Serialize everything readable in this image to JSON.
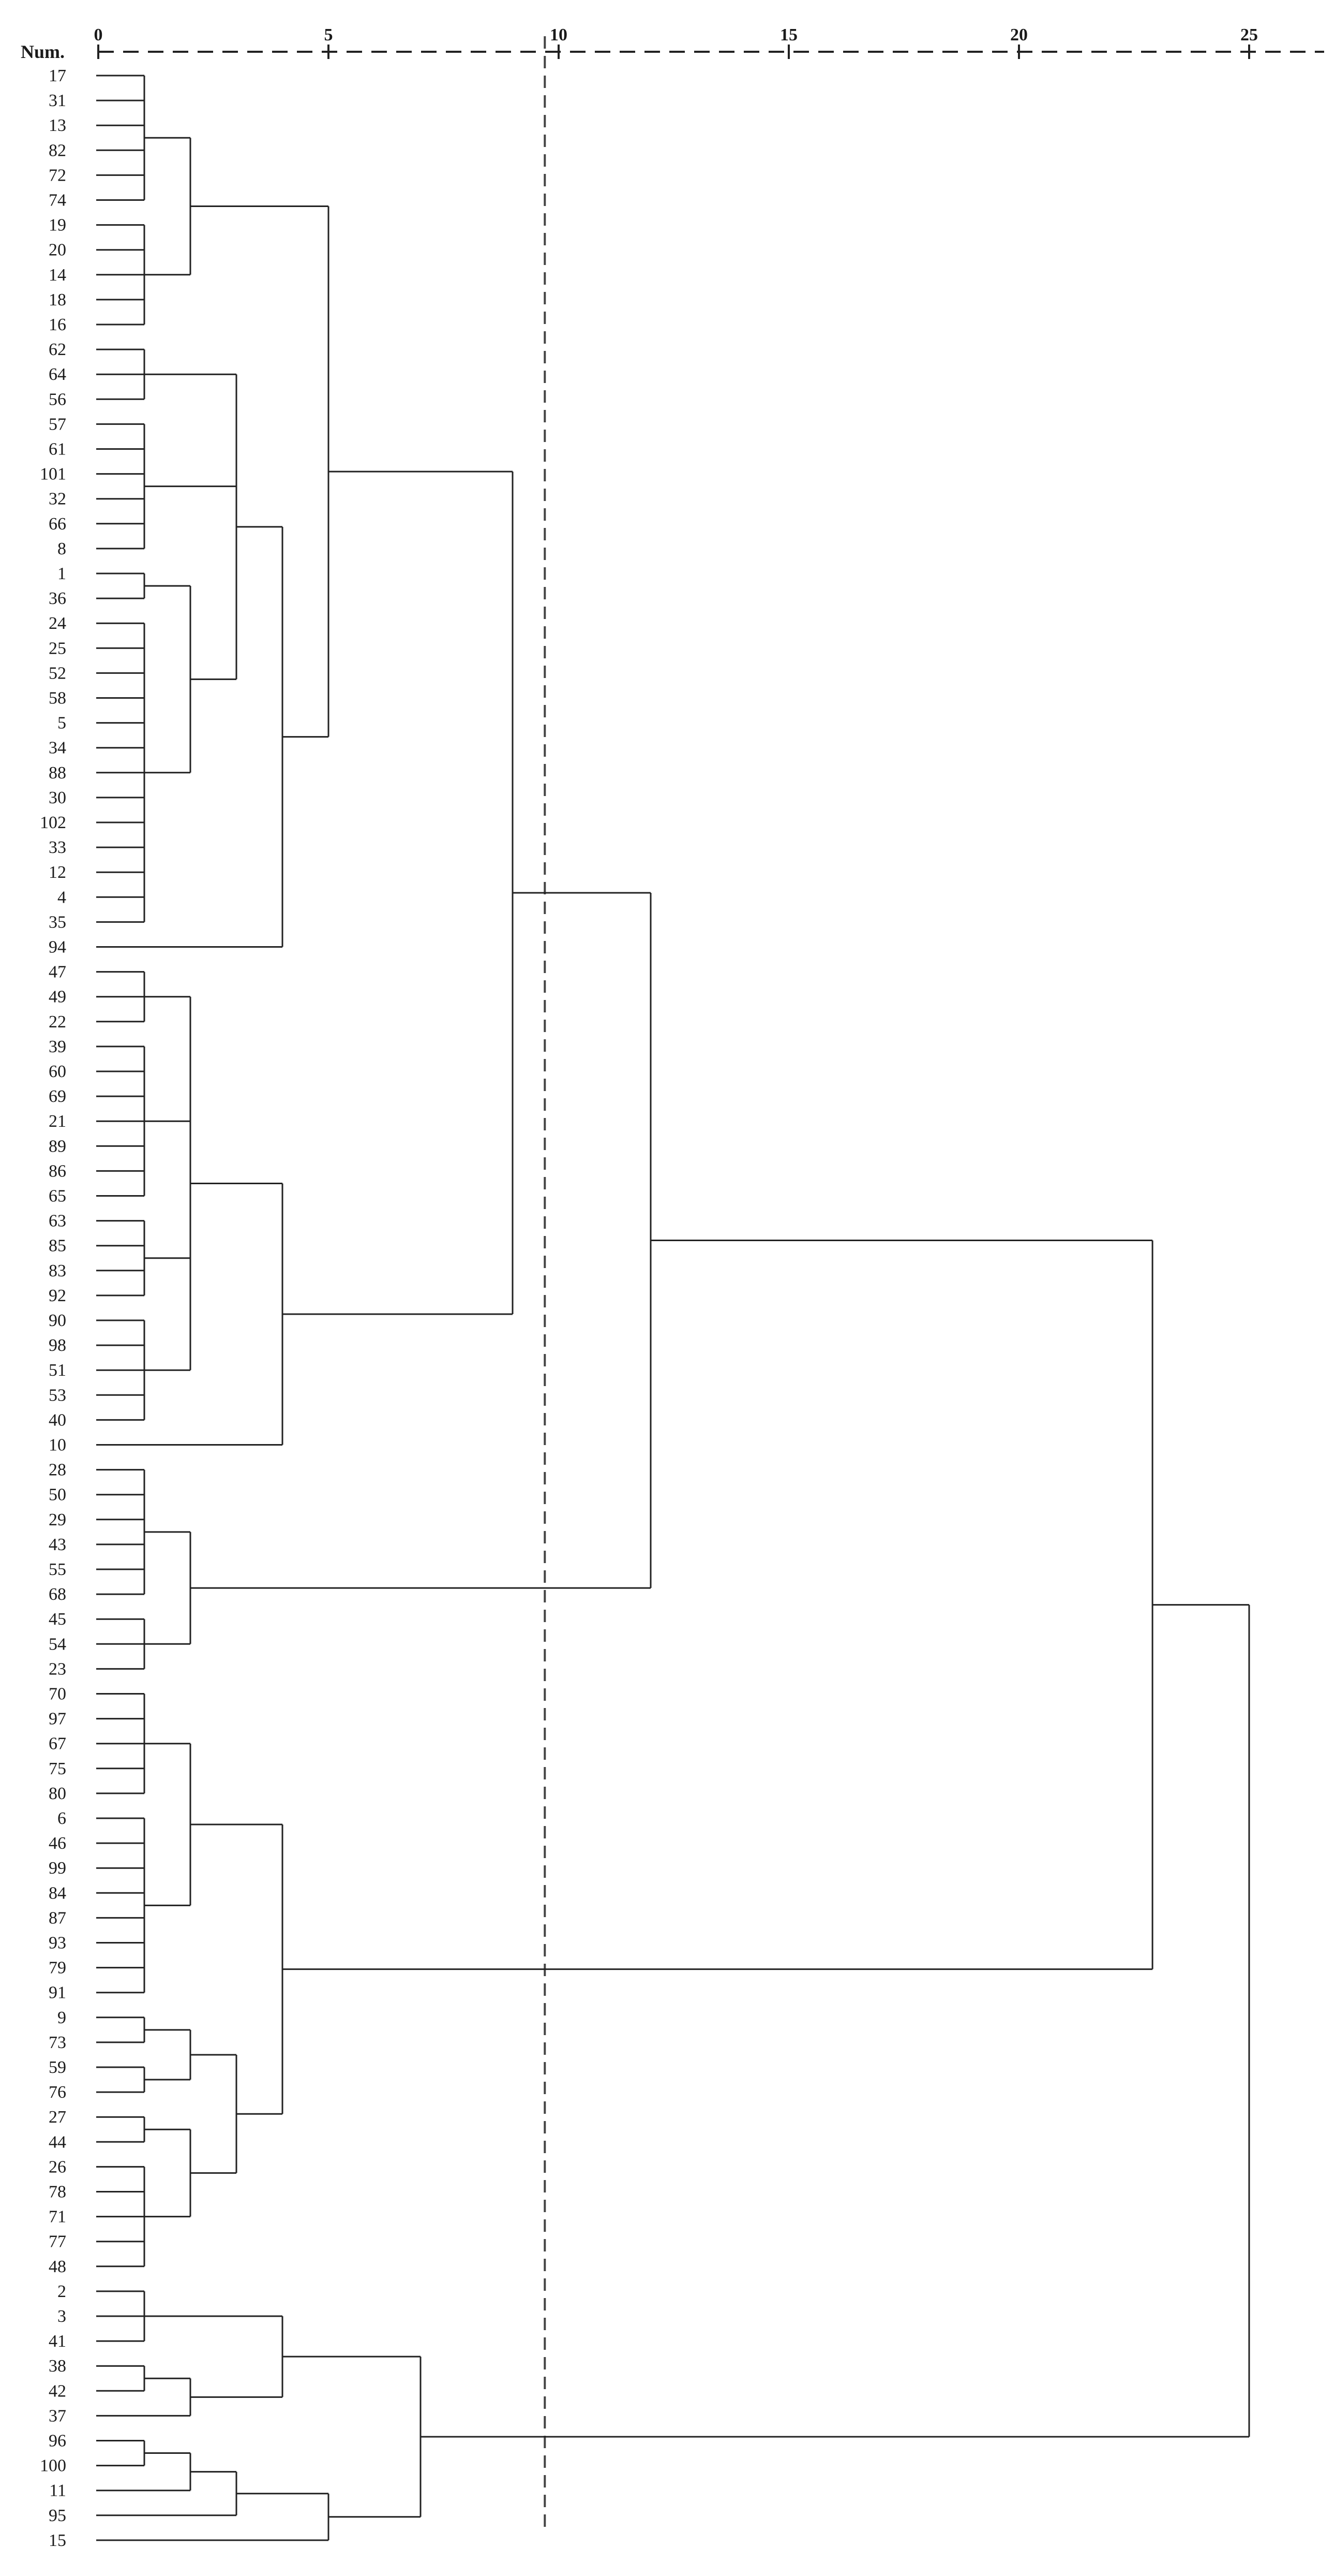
{
  "axis": {
    "title": "Num.",
    "ticks": [
      0,
      5,
      10,
      15,
      20,
      25
    ]
  },
  "cut_line_distance": 9.7,
  "leaves": [
    "17",
    "31",
    "13",
    "82",
    "72",
    "74",
    "19",
    "20",
    "14",
    "18",
    "16",
    "62",
    "64",
    "56",
    "57",
    "61",
    "101",
    "32",
    "66",
    "8",
    "1",
    "36",
    "24",
    "25",
    "52",
    "58",
    "5",
    "34",
    "88",
    "30",
    "102",
    "33",
    "12",
    "4",
    "35",
    "94",
    "47",
    "49",
    "22",
    "39",
    "60",
    "69",
    "21",
    "89",
    "86",
    "65",
    "63",
    "85",
    "83",
    "92",
    "90",
    "98",
    "51",
    "53",
    "40",
    "10",
    "28",
    "50",
    "29",
    "43",
    "55",
    "68",
    "45",
    "54",
    "23",
    "70",
    "97",
    "67",
    "75",
    "80",
    "6",
    "46",
    "99",
    "84",
    "87",
    "93",
    "79",
    "91",
    "9",
    "73",
    "59",
    "76",
    "27",
    "44",
    "26",
    "78",
    "71",
    "77",
    "48",
    "2",
    "3",
    "41",
    "38",
    "42",
    "37",
    "96",
    "100",
    "11",
    "95",
    "15"
  ],
  "tree": {
    "h": 25.0,
    "c": [
      {
        "h": 22.9,
        "c": [
          {
            "h": 12.0,
            "c": [
              {
                "h": 9.0,
                "c": [
                  {
                    "h": 5.0,
                    "c": [
                      {
                        "h": 2.0,
                        "c": [
                          {
                            "h": 1.0,
                            "c": [
                              "17",
                              "31",
                              "13",
                              "82",
                              "72",
                              "74"
                            ]
                          },
                          {
                            "h": 1.0,
                            "c": [
                              "19",
                              "20",
                              "14",
                              "18",
                              "16"
                            ]
                          }
                        ]
                      },
                      {
                        "h": 4.0,
                        "c": [
                          {
                            "h": 3.0,
                            "c": [
                              {
                                "h": 1.0,
                                "c": [
                                  "62",
                                  "64",
                                  "56"
                                ]
                              },
                              {
                                "h": 1.0,
                                "c": [
                                  "57",
                                  "61",
                                  "101",
                                  "32",
                                  "66",
                                  "8"
                                ]
                              },
                              {
                                "h": 2.0,
                                "c": [
                                  {
                                    "h": 1.0,
                                    "c": [
                                      "1",
                                      "36"
                                    ]
                                  },
                                  {
                                    "h": 1.0,
                                    "c": [
                                      "24",
                                      "25",
                                      "52",
                                      "58",
                                      "5",
                                      "34",
                                      "88",
                                      "30",
                                      "102",
                                      "33",
                                      "12",
                                      "4",
                                      "35"
                                    ]
                                  }
                                ]
                              }
                            ]
                          },
                          "94"
                        ]
                      }
                    ]
                  },
                  {
                    "h": 4.0,
                    "c": [
                      {
                        "h": 2.0,
                        "c": [
                          {
                            "h": 1.0,
                            "c": [
                              "47",
                              "49",
                              "22"
                            ]
                          },
                          {
                            "h": 1.0,
                            "c": [
                              "39",
                              "60",
                              "69",
                              "21",
                              "89",
                              "86",
                              "65"
                            ]
                          },
                          {
                            "h": 1.0,
                            "c": [
                              "63",
                              "85",
                              "83",
                              "92"
                            ]
                          },
                          {
                            "h": 1.0,
                            "c": [
                              "90",
                              "98",
                              "51",
                              "53",
                              "40"
                            ]
                          }
                        ]
                      },
                      "10"
                    ]
                  }
                ]
              },
              {
                "h": 2.0,
                "c": [
                  {
                    "h": 1.0,
                    "c": [
                      "28",
                      "50",
                      "29",
                      "43",
                      "55",
                      "68"
                    ]
                  },
                  {
                    "h": 1.0,
                    "c": [
                      "45",
                      "54",
                      "23"
                    ]
                  }
                ]
              }
            ]
          },
          {
            "h": 4.0,
            "c": [
              {
                "h": 2.0,
                "c": [
                  {
                    "h": 1.0,
                    "c": [
                      "70",
                      "97",
                      "67",
                      "75",
                      "80"
                    ]
                  },
                  {
                    "h": 1.0,
                    "c": [
                      "6",
                      "46",
                      "99",
                      "84",
                      "87",
                      "93",
                      "79",
                      "91"
                    ]
                  }
                ]
              },
              {
                "h": 3.0,
                "c": [
                  {
                    "h": 2.0,
                    "c": [
                      {
                        "h": 1.0,
                        "c": [
                          "9",
                          "73"
                        ]
                      },
                      {
                        "h": 1.0,
                        "c": [
                          "59",
                          "76"
                        ]
                      }
                    ]
                  },
                  {
                    "h": 2.0,
                    "c": [
                      {
                        "h": 1.0,
                        "c": [
                          "27",
                          "44"
                        ]
                      },
                      {
                        "h": 1.0,
                        "c": [
                          "26",
                          "78",
                          "71",
                          "77",
                          "48"
                        ]
                      }
                    ]
                  }
                ]
              }
            ]
          }
        ]
      },
      {
        "h": 7.0,
        "c": [
          {
            "h": 4.0,
            "c": [
              {
                "h": 1.0,
                "c": [
                  "2",
                  "3",
                  "41"
                ]
              },
              {
                "h": 2.0,
                "c": [
                  {
                    "h": 1.0,
                    "c": [
                      "38",
                      "42"
                    ]
                  },
                  "37"
                ]
              }
            ]
          },
          {
            "h": 5.0,
            "c": [
              {
                "h": 3.0,
                "c": [
                  {
                    "h": 2.0,
                    "c": [
                      {
                        "h": 1.0,
                        "c": [
                          "96",
                          "100"
                        ]
                      },
                      "11"
                    ]
                  },
                  "95"
                ]
              },
              "15"
            ]
          }
        ]
      }
    ]
  }
}
